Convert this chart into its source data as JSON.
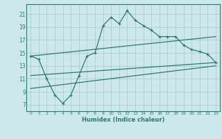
{
  "title": "",
  "xlabel": "Humidex (Indice chaleur)",
  "bg_color": "#cce8ec",
  "grid_color": "#aacdd4",
  "line_color": "#2a7a6f",
  "xlim": [
    -0.5,
    23.5
  ],
  "ylim": [
    6,
    22.5
  ],
  "yticks": [
    7,
    9,
    11,
    13,
    15,
    17,
    19,
    21
  ],
  "xticks": [
    0,
    1,
    2,
    3,
    4,
    5,
    6,
    7,
    8,
    9,
    10,
    11,
    12,
    13,
    14,
    15,
    16,
    17,
    18,
    19,
    20,
    21,
    22,
    23
  ],
  "line1_x": [
    0,
    1,
    2,
    3,
    4,
    5,
    6,
    7,
    8,
    9,
    10,
    11,
    12,
    13,
    14,
    15,
    16,
    17,
    18,
    19,
    20,
    21,
    22,
    23
  ],
  "line1_y": [
    14.5,
    14.0,
    11.0,
    8.5,
    7.2,
    8.5,
    11.5,
    14.5,
    15.0,
    19.2,
    20.5,
    19.5,
    21.5,
    20.0,
    19.2,
    18.5,
    17.5,
    17.5,
    17.5,
    16.2,
    15.5,
    15.2,
    14.8,
    13.5
  ],
  "line2_x": [
    0,
    23
  ],
  "line2_y": [
    14.5,
    17.5
  ],
  "line3_x": [
    0,
    23
  ],
  "line3_y": [
    11.5,
    13.5
  ],
  "line4_x": [
    0,
    23
  ],
  "line4_y": [
    9.5,
    13.0
  ]
}
